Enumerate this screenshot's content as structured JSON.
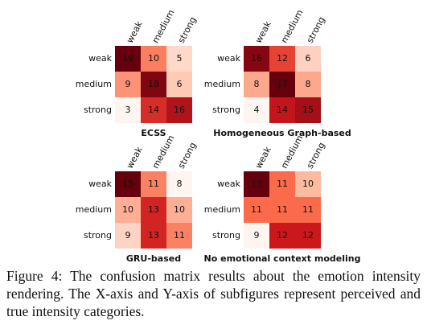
{
  "chart_data": [
    {
      "type": "heatmap",
      "title": "ECSS",
      "x_categories": [
        "weak",
        "medium",
        "strong"
      ],
      "y_categories": [
        "weak",
        "medium",
        "strong"
      ],
      "values": [
        [
          19,
          10,
          5
        ],
        [
          9,
          18,
          6
        ],
        [
          3,
          14,
          16
        ]
      ]
    },
    {
      "type": "heatmap",
      "title": "Homogeneous Graph-based",
      "x_categories": [
        "weak",
        "medium",
        "strong"
      ],
      "y_categories": [
        "weak",
        "medium",
        "strong"
      ],
      "values": [
        [
          16,
          12,
          6
        ],
        [
          8,
          17,
          8
        ],
        [
          4,
          14,
          15
        ]
      ]
    },
    {
      "type": "heatmap",
      "title": "GRU-based",
      "x_categories": [
        "weak",
        "medium",
        "strong"
      ],
      "y_categories": [
        "weak",
        "medium",
        "strong"
      ],
      "values": [
        [
          15,
          11,
          8
        ],
        [
          10,
          13,
          10
        ],
        [
          9,
          13,
          11
        ]
      ]
    },
    {
      "type": "heatmap",
      "title": "No emotional context modeling",
      "x_categories": [
        "weak",
        "medium",
        "strong"
      ],
      "y_categories": [
        "weak",
        "medium",
        "strong"
      ],
      "values": [
        [
          13,
          11,
          10
        ],
        [
          11,
          11,
          11
        ],
        [
          9,
          12,
          12
        ]
      ]
    }
  ],
  "caption": "Figure 4: The confusion matrix results about the emotion intensity rendering. The X-axis and Y-axis of subfigures represent perceived and true intensity categories."
}
